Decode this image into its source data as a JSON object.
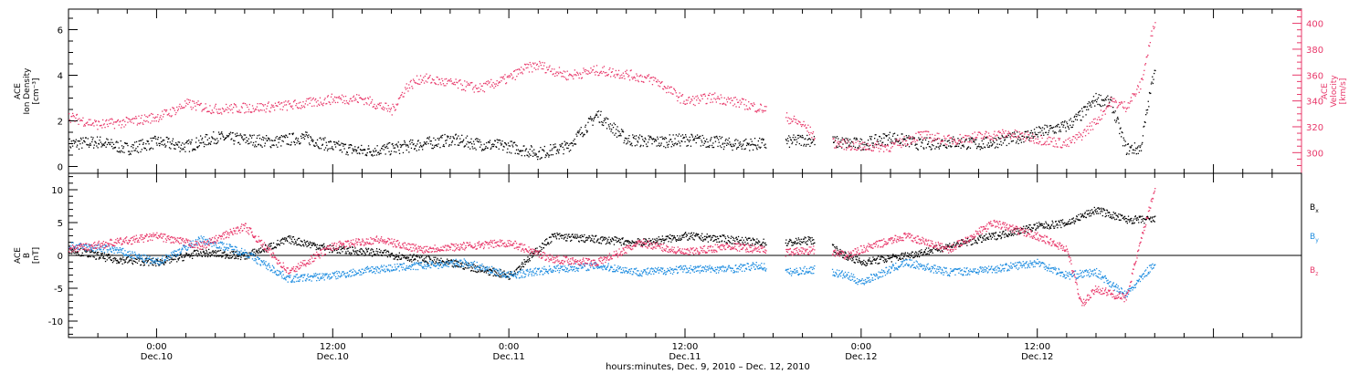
{
  "chart_data": [
    {
      "type": "scatter",
      "panel": "ace-plasma",
      "ylabel_lines": [
        "ACE",
        "Ion Density",
        "[cm⁻³]"
      ],
      "y2label_lines": [
        "ACE",
        "Velocity",
        "[km/s]"
      ],
      "ylim": [
        -0.3,
        6.9
      ],
      "y2lim": [
        284,
        411
      ],
      "yticks": [
        0,
        2,
        4,
        6
      ],
      "y2ticks": [
        300,
        320,
        340,
        360,
        380,
        400
      ],
      "xlim": [
        -6,
        78
      ],
      "series": [
        {
          "axis": "left",
          "color": "#000000",
          "x": [
            -6,
            -4,
            -2,
            0,
            2,
            4,
            6,
            8,
            10,
            12,
            14,
            16,
            18,
            20,
            22,
            24,
            26,
            28,
            30,
            32,
            34,
            36,
            38,
            39,
            42,
            44,
            46,
            48,
            50,
            52,
            54,
            56,
            58,
            60,
            62,
            63,
            64,
            65,
            66,
            67,
            68
          ],
          "y": [
            1.0,
            1.1,
            0.8,
            1.1,
            0.9,
            1.3,
            1.2,
            1.1,
            1.3,
            0.9,
            0.7,
            0.8,
            1.0,
            1.2,
            1.0,
            0.9,
            0.6,
            0.9,
            2.3,
            1.2,
            1.1,
            1.2,
            1.1,
            1.0,
            1.0,
            1.2,
            1.1,
            1.0,
            1.3,
            1.0,
            1.1,
            1.0,
            1.2,
            1.5,
            1.8,
            2.3,
            3.0,
            2.8,
            0.8,
            0.8,
            4.5
          ]
        },
        {
          "axis": "right",
          "color": "#e8386a",
          "x": [
            -6,
            -4,
            -2,
            0,
            1,
            2,
            4,
            6,
            8,
            10,
            12,
            14,
            16,
            17,
            18,
            20,
            22,
            24,
            25,
            26,
            28,
            30,
            32,
            34,
            36,
            38,
            40,
            42,
            44,
            45,
            46,
            48,
            50,
            52,
            54,
            56,
            58,
            60,
            62,
            63,
            64,
            65,
            66,
            67,
            68
          ],
          "y": [
            328,
            322,
            324,
            328,
            332,
            338,
            334,
            335,
            336,
            338,
            342,
            342,
            333,
            351,
            358,
            354,
            350,
            358,
            365,
            368,
            360,
            364,
            361,
            356,
            340,
            343,
            338,
            332,
            322,
            311,
            308,
            305,
            305,
            314,
            310,
            313,
            315,
            311,
            307,
            314,
            325,
            340,
            336,
            352,
            404
          ]
        }
      ]
    },
    {
      "type": "scatter",
      "panel": "ace-field",
      "ylabel_lines": [
        "ACE",
        "B",
        "[nT]"
      ],
      "ylim": [
        -12.5,
        12.5
      ],
      "yticks": [
        -10,
        -5,
        0,
        5,
        10
      ],
      "xlim": [
        -6,
        78
      ],
      "gaps": [
        [
          41.5,
          42.8
        ],
        [
          44.8,
          46.0
        ]
      ],
      "x_ticks": [
        {
          "hour": 0,
          "time": "0:00",
          "date": "Dec.10"
        },
        {
          "hour": 12,
          "time": "12:00",
          "date": "Dec.10"
        },
        {
          "hour": 24,
          "time": "0:00",
          "date": "Dec.11"
        },
        {
          "hour": 36,
          "time": "12:00",
          "date": "Dec.11"
        },
        {
          "hour": 48,
          "time": "0:00",
          "date": "Dec.12"
        },
        {
          "hour": 60,
          "time": "12:00",
          "date": "Dec.12"
        }
      ],
      "series": [
        {
          "name": "Bx",
          "label_main": "B",
          "label_sub": "x",
          "color": "#000000",
          "x": [
            -6,
            -3,
            0,
            3,
            6,
            9,
            12,
            15,
            18,
            21,
            24,
            27,
            30,
            33,
            36,
            39,
            41,
            43,
            45,
            47,
            48,
            51,
            54,
            57,
            60,
            62,
            64,
            66,
            68
          ],
          "y": [
            1.0,
            -0.5,
            -1.0,
            0.5,
            0.0,
            2.5,
            1.0,
            0.5,
            -0.5,
            -1.5,
            -3.0,
            3.0,
            2.5,
            2.0,
            3.0,
            2.5,
            2.0,
            2.0,
            2.5,
            0.0,
            -1.0,
            0.0,
            1.5,
            3.0,
            4.5,
            5.0,
            7.0,
            5.5,
            5.5
          ]
        },
        {
          "name": "By",
          "label_main": "B",
          "label_sub": "y",
          "color": "#1f8de0",
          "x": [
            -6,
            -3,
            0,
            3,
            6,
            9,
            12,
            15,
            18,
            21,
            24,
            27,
            30,
            33,
            36,
            39,
            41,
            43,
            45,
            47,
            48,
            51,
            54,
            57,
            60,
            62,
            64,
            66,
            68
          ],
          "y": [
            1.5,
            1.0,
            -1.0,
            2.5,
            0.5,
            -3.5,
            -3.0,
            -2.0,
            -1.5,
            -1.0,
            -3.0,
            -2.0,
            -1.5,
            -2.5,
            -2.0,
            -2.0,
            -1.5,
            -2.5,
            -2.0,
            -3.0,
            -4.0,
            -1.0,
            -2.5,
            -2.0,
            -1.0,
            -3.0,
            -2.5,
            -6.0,
            -1.0
          ]
        },
        {
          "name": "Bz",
          "label_main": "B",
          "label_sub": "z",
          "color": "#e8386a",
          "x": [
            -6,
            -3,
            0,
            3,
            6,
            9,
            12,
            15,
            18,
            21,
            24,
            27,
            30,
            33,
            36,
            39,
            41,
            43,
            45,
            47,
            48,
            51,
            54,
            57,
            60,
            62,
            63,
            64,
            66,
            68
          ],
          "y": [
            1.0,
            2.0,
            3.0,
            1.5,
            4.5,
            -2.5,
            1.5,
            2.5,
            1.0,
            1.5,
            2.0,
            -0.5,
            -1.0,
            2.0,
            0.5,
            1.5,
            1.0,
            0.5,
            1.0,
            0.0,
            1.0,
            3.0,
            1.0,
            5.0,
            3.0,
            1.0,
            -7.5,
            -5.0,
            -6.5,
            10.5
          ]
        }
      ]
    }
  ],
  "xlabel": "hours:minutes, Dec. 9, 2010 – Dec. 12, 2010"
}
